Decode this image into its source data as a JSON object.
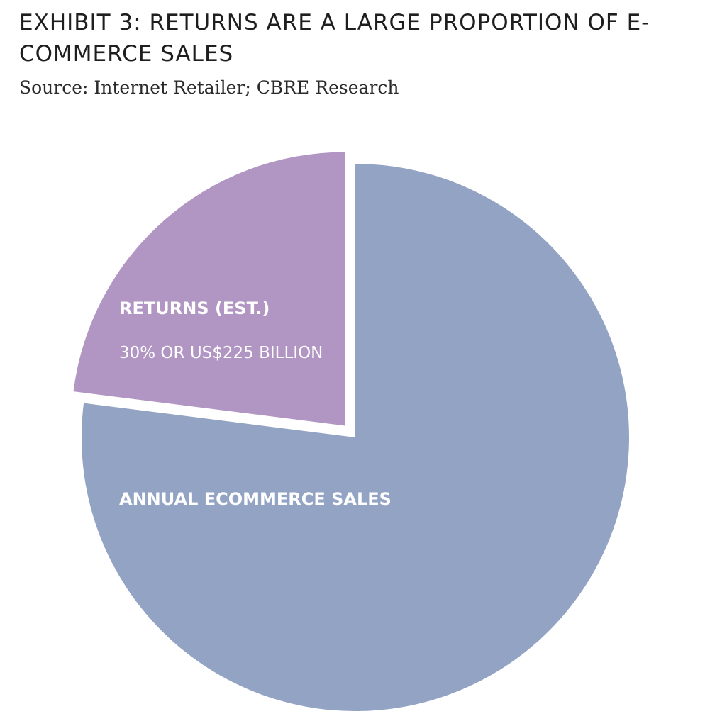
{
  "header": {
    "title": "EXHIBIT 3: RETURNS ARE A LARGE PROPORTION OF E-COMMERCE SALES",
    "source": "Source: Internet Retailer; CBRE Research"
  },
  "chart_data": {
    "type": "pie",
    "title": "EXHIBIT 3: RETURNS ARE A LARGE PROPORTION OF E-COMMERCE SALES",
    "subtitle": "Source: Internet Retailer; CBRE Research",
    "slices": [
      {
        "name": "ANNUAL ECOMMERCE SALES",
        "percent": 77,
        "color": "#93a3c4",
        "exploded": false,
        "label": "ANNUAL ECOMMERCE SALES",
        "detail": ""
      },
      {
        "name": "RETURNS (EST.)",
        "percent": 23,
        "color": "#b196c3",
        "exploded": true,
        "label": "RETURNS (EST.)",
        "detail": "30% OR US$225 BILLION"
      }
    ],
    "start_angle_deg": 0,
    "direction": "clockwise",
    "legend": "none"
  }
}
